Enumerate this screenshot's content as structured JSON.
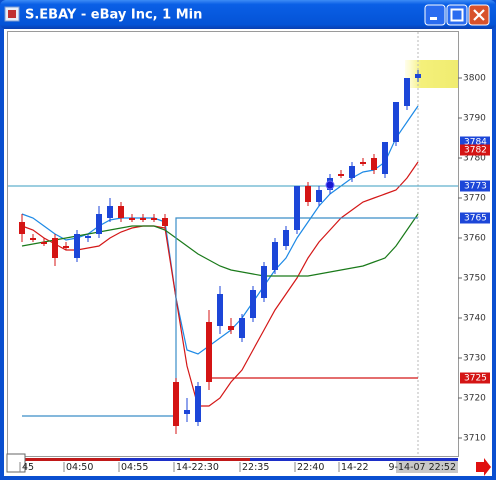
{
  "chart_data": {
    "type": "candlestick",
    "title": "S.EBAY - eBay Inc, 1 Min",
    "categories": [
      null,
      "45",
      null,
      null,
      null,
      "04:50",
      null,
      null,
      null,
      null,
      "04:55",
      null,
      null,
      null,
      null,
      "14-22:30",
      null,
      null,
      null,
      null,
      null,
      "22:35",
      null,
      null,
      null,
      null,
      "22:40",
      null,
      null,
      null,
      "14-22",
      null,
      null,
      null,
      null,
      null,
      "9-14-07 22:52"
    ],
    "open": [
      3764,
      3760,
      3759,
      3760,
      3758,
      3755,
      3760,
      3761,
      3765,
      3768,
      3765,
      3765,
      3765,
      3765,
      3724,
      3716,
      3714,
      3739,
      3738,
      3738,
      3735,
      3740,
      3745,
      3752,
      3758,
      3762,
      3773,
      3769,
      3772,
      3776,
      3775,
      3779,
      3780,
      3776,
      3784,
      3793,
      3800
    ],
    "high": [
      3766,
      3761,
      3760,
      3761,
      3759,
      3762,
      3761,
      3768,
      3770,
      3769,
      3766,
      3766,
      3766,
      3766,
      3725,
      3720,
      3724,
      3742,
      3748,
      3740,
      3741,
      3748,
      3754,
      3760,
      3763,
      3773,
      3774,
      3773,
      3776,
      3777,
      3779,
      3780,
      3781,
      3784,
      3794,
      3800,
      3802
    ],
    "low": [
      3759,
      3759,
      3758,
      3753,
      3757,
      3754,
      3759,
      3760,
      3764,
      3764,
      3764,
      3764,
      3764,
      3762,
      3711,
      3714,
      3713,
      3722,
      3736,
      3736,
      3734,
      3739,
      3744,
      3751,
      3757,
      3761,
      3768,
      3768,
      3771,
      3775,
      3774,
      3778,
      3776,
      3775,
      3783,
      3792,
      3799
    ],
    "close": [
      3761,
      3759.5,
      3758.5,
      3755,
      3757.5,
      3761,
      3760.5,
      3766,
      3768,
      3765,
      3764.5,
      3764.5,
      3764.5,
      3763,
      3713,
      3717,
      3723,
      3724,
      3746,
      3737,
      3740,
      3747,
      3753,
      3759,
      3762,
      3773,
      3769,
      3772,
      3775,
      3775.5,
      3778,
      3778.5,
      3777,
      3784,
      3794,
      3800,
      3801
    ],
    "up_color": "#1c46d8",
    "down_color": "#d41414",
    "lines": [
      {
        "color": "#1e8ae6",
        "step": false,
        "values": [
          3766,
          3765,
          3763,
          3761,
          3759.5,
          3760,
          3761,
          3763,
          3764.5,
          3765,
          3765,
          3765,
          3765,
          3764,
          3745,
          3732,
          3731,
          3733,
          3735,
          3737,
          3740,
          3744,
          3748,
          3752,
          3755,
          3760,
          3764,
          3768,
          3771,
          3773,
          3775,
          3776.5,
          3777,
          3779,
          3785,
          3789,
          3793
        ]
      },
      {
        "color": "#d41818",
        "step": false,
        "values": [
          3763,
          3762,
          3760,
          3758.5,
          3757,
          3757,
          3757.5,
          3758,
          3760,
          3761.5,
          3762.5,
          3763,
          3763,
          3762.5,
          3745,
          3728,
          3718,
          3718,
          3720,
          3724,
          3727,
          3732,
          3737,
          3742,
          3746,
          3750,
          3755,
          3759,
          3762,
          3765,
          3767,
          3769,
          3770,
          3771,
          3772,
          3775,
          3779
        ]
      },
      {
        "color": "#1a7a1a",
        "step": false,
        "values": [
          3758,
          3758.5,
          3759,
          3759.5,
          3760,
          3760.5,
          3761,
          3761.5,
          3762,
          3762.5,
          3763,
          3763,
          3763,
          3762,
          3760,
          3758,
          3756,
          3754.5,
          3753,
          3752,
          3751.5,
          3751,
          3750.5,
          3750.5,
          3750.5,
          3750.5,
          3750.5,
          3751,
          3751.5,
          3752,
          3752.5,
          3753,
          3754,
          3755,
          3758,
          3762,
          3766
        ]
      },
      {
        "color": "#3a8ec8",
        "step": true,
        "values": [
          3715.5,
          3715.5,
          3715.5,
          3715.5,
          3715.5,
          3715.5,
          3715.5,
          3715.5,
          3715.5,
          3715.5,
          3715.5,
          3715.5,
          3715.5,
          3715.5,
          3765,
          3765,
          3765,
          3765,
          3765,
          3765,
          3765,
          3765,
          3765,
          3765,
          3765,
          3765,
          3765,
          3765,
          3765,
          3765,
          3765,
          3765,
          3765,
          3765,
          3765,
          3765,
          3765
        ]
      },
      {
        "color": "#d41818",
        "step": false,
        "values": [
          null,
          null,
          null,
          null,
          null,
          null,
          null,
          null,
          null,
          null,
          null,
          null,
          null,
          null,
          null,
          null,
          null,
          3725,
          3725,
          3725,
          3725,
          3725,
          3725,
          3725,
          3725,
          3725,
          3725,
          3725,
          3725,
          3725,
          3725,
          3725,
          3725,
          3725,
          3725,
          3725,
          3725
        ]
      }
    ],
    "price_labels": [
      {
        "value": 3784,
        "color": "#1c46d8",
        "line": false
      },
      {
        "value": 3782,
        "color": "#d41414",
        "line": false
      },
      {
        "value": 3773,
        "color": "#1c46d8",
        "line": true
      },
      {
        "value": 3765,
        "color": "#1c46d8",
        "line": false
      },
      {
        "value": 3725,
        "color": "#d41414",
        "line": false
      }
    ],
    "ylim": [
      3705.5,
      3811.5
    ],
    "yticks": [
      3710,
      3720,
      3730,
      3740,
      3750,
      3760,
      3770,
      3780,
      3790,
      3800
    ]
  }
}
